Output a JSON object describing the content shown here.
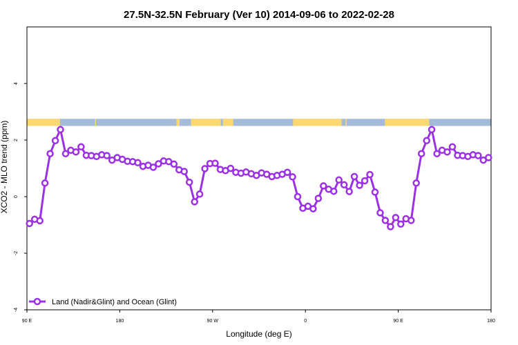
{
  "chart_data": {
    "type": "line",
    "title": "27.5N-32.5N February (Ver 10)   2014-09-06 to 2022-02-28",
    "xlabel": "Longitude (deg E)",
    "ylabel": "XCO2 - MLO trend (ppm)",
    "xlim": [
      90,
      540
    ],
    "ylim": [
      -4,
      6
    ],
    "x_ticks": [
      {
        "value": 90,
        "label": "90 E"
      },
      {
        "value": 180,
        "label": "180"
      },
      {
        "value": 270,
        "label": "90 W"
      },
      {
        "value": 360,
        "label": "0"
      },
      {
        "value": 450,
        "label": "90 E"
      },
      {
        "value": 540,
        "label": "180"
      }
    ],
    "y_ticks": [
      {
        "value": -4,
        "label": "-4"
      },
      {
        "value": -2,
        "label": "-2"
      },
      {
        "value": 0,
        "label": "0"
      },
      {
        "value": 2,
        "label": "2"
      },
      {
        "value": 4,
        "label": "4"
      }
    ],
    "legend_position": "bottom-left",
    "surface_strip": {
      "y_range": [
        2.5,
        2.75
      ],
      "land_color": "#fbd872",
      "ocean_color": "#a4bcd9",
      "land_ranges": [
        [
          90,
          122
        ],
        [
          156,
          157
        ],
        [
          235,
          238
        ],
        [
          249,
          278
        ],
        [
          280,
          281
        ],
        [
          280,
          290
        ],
        [
          348,
          395
        ],
        [
          399,
          400
        ],
        [
          437,
          480
        ]
      ]
    },
    "series": [
      {
        "name": "Land (Nadir&Glint) and Ocean (Glint)",
        "color": "#9b30e6",
        "x": [
          92.5,
          97.5,
          102.5,
          107.5,
          112.5,
          117.5,
          122.5,
          127.5,
          132.5,
          137.5,
          142.5,
          147.5,
          152.5,
          157.5,
          162.5,
          167.5,
          172.5,
          177.5,
          182.5,
          187.5,
          192.5,
          197.5,
          202.5,
          207.5,
          212.5,
          217.5,
          222.5,
          227.5,
          232.5,
          237.5,
          242.5,
          247.5,
          252.5,
          257.5,
          262.5,
          267.5,
          272.5,
          277.5,
          282.5,
          287.5,
          292.5,
          297.5,
          302.5,
          307.5,
          312.5,
          317.5,
          322.5,
          327.5,
          332.5,
          337.5,
          342.5,
          347.5,
          352.5,
          357.5,
          362.5,
          367.5,
          372.5,
          377.5,
          382.5,
          387.5,
          392.5,
          397.5,
          402.5,
          407.5,
          412.5,
          417.5,
          422.5,
          427.5,
          432.5,
          437.5,
          442.5,
          447.5,
          452.5,
          457.5,
          462.5,
          467.5,
          472.5,
          477.5,
          482.5,
          487.5,
          492.5,
          497.5,
          502.5,
          507.5,
          512.5,
          517.5,
          522.5,
          527.5,
          532.5,
          537.5
        ],
        "y": [
          -0.95,
          -0.8,
          -0.85,
          0.48,
          1.52,
          1.98,
          2.37,
          1.52,
          1.64,
          1.58,
          1.76,
          1.46,
          1.45,
          1.42,
          1.48,
          1.45,
          1.29,
          1.38,
          1.32,
          1.25,
          1.24,
          1.2,
          1.07,
          1.11,
          1.04,
          1.16,
          1.26,
          1.24,
          1.15,
          0.95,
          0.89,
          0.51,
          -0.18,
          0.09,
          0.99,
          1.17,
          1.18,
          0.96,
          0.92,
          1.0,
          0.86,
          0.83,
          0.87,
          0.81,
          0.75,
          0.84,
          0.79,
          0.71,
          0.75,
          0.79,
          0.86,
          0.7,
          0.0,
          -0.41,
          -0.34,
          -0.43,
          -0.06,
          0.38,
          0.26,
          0.19,
          0.59,
          0.42,
          0.18,
          0.71,
          0.4,
          0.56,
          0.78,
          0.16,
          -0.57,
          -0.84,
          -1.06,
          -0.74,
          -0.97,
          -0.78,
          -0.84,
          0.48,
          1.52,
          1.98,
          2.37,
          1.52,
          1.64,
          1.58,
          1.76,
          1.46,
          1.45,
          1.42,
          1.48,
          1.45,
          1.29,
          1.38
        ]
      }
    ]
  }
}
